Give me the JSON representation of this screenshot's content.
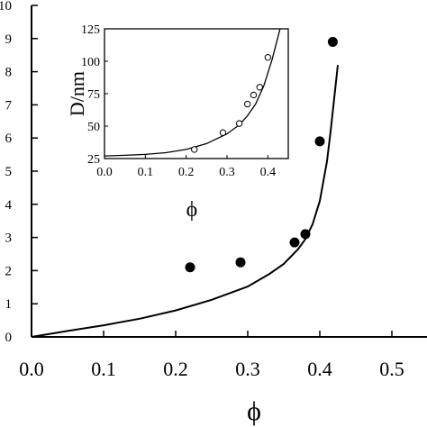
{
  "chart_data": [
    {
      "type": "scatter",
      "xlabel": "ϕ",
      "ylabel": "",
      "xlim": [
        0,
        0.55
      ],
      "ylim": [
        0,
        10
      ],
      "x_ticks": [
        "0.0",
        "0.1",
        "0.2",
        "0.3",
        "0.4",
        "0.5"
      ],
      "y_ticks": [
        "0",
        "1",
        "2",
        "3",
        "4",
        "5",
        "6",
        "7",
        "8",
        "9",
        "10"
      ],
      "grid": false,
      "series": [
        {
          "kind": "points",
          "marker": "filled-circle",
          "x": [
            0.22,
            0.29,
            0.365,
            0.38,
            0.4,
            0.418
          ],
          "y": [
            2.1,
            2.25,
            2.85,
            3.1,
            5.9,
            8.9
          ]
        },
        {
          "kind": "line",
          "x": [
            0.0,
            0.05,
            0.1,
            0.15,
            0.2,
            0.25,
            0.3,
            0.33,
            0.35,
            0.37,
            0.38,
            0.39,
            0.4,
            0.41,
            0.415,
            0.42,
            0.425
          ],
          "y": [
            0.0,
            0.18,
            0.35,
            0.55,
            0.8,
            1.12,
            1.52,
            1.9,
            2.2,
            2.65,
            2.95,
            3.4,
            4.1,
            5.3,
            6.2,
            7.2,
            8.2
          ]
        }
      ]
    },
    {
      "type": "scatter",
      "ylabel": "D/nm",
      "xlabel": "ϕ",
      "xlim": [
        0,
        0.45
      ],
      "ylim": [
        25,
        125
      ],
      "x_ticks": [
        "0.0",
        "0.1",
        "0.2",
        "0.3",
        "0.4"
      ],
      "y_ticks": [
        "25",
        "50",
        "75",
        "100",
        "125"
      ],
      "grid": false,
      "series": [
        {
          "kind": "points",
          "marker": "open-circle",
          "x": [
            0.22,
            0.29,
            0.33,
            0.35,
            0.365,
            0.38,
            0.4
          ],
          "y": [
            32,
            45,
            52,
            67,
            74,
            80,
            103
          ]
        },
        {
          "kind": "line",
          "x": [
            0.0,
            0.05,
            0.1,
            0.15,
            0.2,
            0.25,
            0.3,
            0.33,
            0.35,
            0.37,
            0.39,
            0.41,
            0.42,
            0.43
          ],
          "y": [
            27,
            27.5,
            28.2,
            29.5,
            32,
            36.5,
            44,
            51,
            58,
            67,
            81,
            101,
            113,
            125
          ]
        }
      ]
    }
  ]
}
